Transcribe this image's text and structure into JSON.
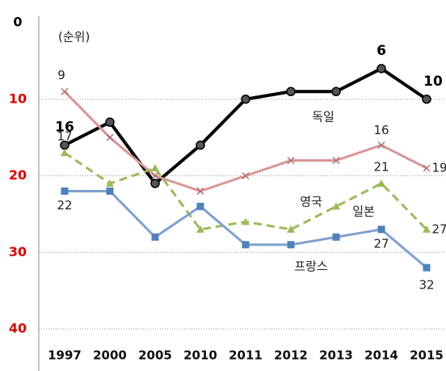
{
  "chart_data": {
    "type": "line",
    "y_label": "(순위)",
    "categories": [
      "1997",
      "2000",
      "2005",
      "2010",
      "2011",
      "2012",
      "2013",
      "2014",
      "2015"
    ],
    "ylim": [
      0,
      40
    ],
    "y_inverted": true,
    "yticks": [
      0,
      10,
      20,
      30,
      40
    ],
    "grid": true,
    "ytick_colors": [
      "#000000",
      "#e00000",
      "#e00000",
      "#e00000",
      "#e00000"
    ],
    "series": [
      {
        "name": "독일",
        "color": "#000000",
        "marker": "circle",
        "dashed": false,
        "values": [
          16,
          13,
          21,
          16,
          10,
          9,
          9,
          6,
          10
        ],
        "value_labels": [
          "16",
          null,
          null,
          null,
          null,
          null,
          null,
          "6",
          "10"
        ]
      },
      {
        "name": "영국",
        "color": "#d99694",
        "marker": "x",
        "dashed": false,
        "values": [
          9,
          15,
          20,
          22,
          20,
          18,
          18,
          16,
          19
        ],
        "value_labels": [
          "9",
          null,
          null,
          null,
          null,
          null,
          null,
          "16",
          "19"
        ]
      },
      {
        "name": "일본",
        "color": "#9bbb59",
        "marker": "triangle",
        "dashed": true,
        "values": [
          17,
          21,
          19,
          27,
          26,
          27,
          24,
          21,
          27
        ],
        "value_labels": [
          "17",
          null,
          null,
          null,
          null,
          null,
          null,
          "21",
          "27"
        ]
      },
      {
        "name": "프랑스",
        "color": "#7fa0d0",
        "marker": "square",
        "dashed": false,
        "values": [
          22,
          22,
          28,
          24,
          29,
          29,
          28,
          27,
          32
        ],
        "value_labels": [
          "22",
          null,
          null,
          null,
          null,
          null,
          null,
          "27",
          "32"
        ]
      }
    ]
  }
}
